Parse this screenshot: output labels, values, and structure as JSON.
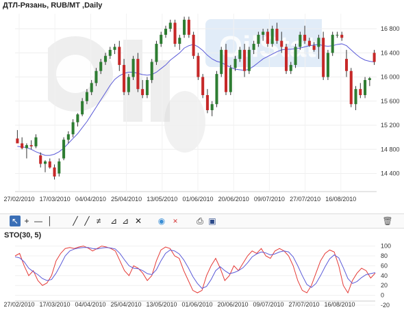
{
  "header": {
    "title": "ДТЛ-Рязань,  RUB/MT ,Daily"
  },
  "watermark": {
    "text": "OilStat"
  },
  "toolbar": {
    "items": [
      {
        "icon": "cursor-icon",
        "active": true
      },
      {
        "icon": "crosshair-icon"
      },
      {
        "icon": "horizontal-line-icon"
      },
      {
        "icon": "vertical-line-icon"
      },
      {
        "icon": "trend-line-icon"
      },
      {
        "icon": "ray-icon"
      },
      {
        "icon": "channel-icon"
      },
      {
        "icon": "fibonacci-icon"
      },
      {
        "icon": "fan-icon"
      },
      {
        "icon": "gann-icon"
      },
      {
        "icon": "comment-icon"
      },
      {
        "icon": "delete-cross-icon"
      },
      {
        "icon": "print-icon"
      },
      {
        "icon": "save-icon"
      },
      {
        "icon": "trash-icon"
      }
    ]
  },
  "chart_data": [
    {
      "type": "candlestick",
      "title": "ДТЛ-Рязань,  RUB/MT ,Daily",
      "x_tick_labels": [
        "27/02/2010",
        "17/03/2010",
        "04/04/2010",
        "25/04/2010",
        "13/05/2010",
        "01/06/2010",
        "20/06/2010",
        "09/07/2010",
        "27/07/2010",
        "16/08/2010"
      ],
      "y_ticks": [
        14400,
        14800,
        15200,
        15600,
        16000,
        16400,
        16800
      ],
      "ylim": [
        14100,
        17050
      ],
      "up_color": "#2e7d32",
      "down_color": "#c62828",
      "ma_color": "#5a5ad8",
      "candles": [
        [
          14980,
          15120,
          14900,
          14900
        ],
        [
          14900,
          15000,
          14800,
          14820
        ],
        [
          14820,
          14900,
          14650,
          14870
        ],
        [
          14870,
          14950,
          14800,
          14850
        ],
        [
          14850,
          15050,
          14820,
          15000
        ],
        [
          14700,
          14750,
          14500,
          14560
        ],
        [
          14560,
          14620,
          14420,
          14600
        ],
        [
          14600,
          14650,
          14480,
          14500
        ],
        [
          14500,
          14550,
          14300,
          14350
        ],
        [
          14400,
          14650,
          14350,
          14600
        ],
        [
          14650,
          15000,
          14620,
          14960
        ],
        [
          14960,
          15100,
          14900,
          15050
        ],
        [
          15050,
          15300,
          15000,
          15250
        ],
        [
          15250,
          15400,
          15180,
          15380
        ],
        [
          15380,
          15650,
          15350,
          15600
        ],
        [
          15600,
          15800,
          15550,
          15750
        ],
        [
          15750,
          15950,
          15700,
          15900
        ],
        [
          15900,
          16150,
          15850,
          16100
        ],
        [
          16100,
          16300,
          16050,
          16250
        ],
        [
          16250,
          16400,
          16200,
          16350
        ],
        [
          16350,
          16500,
          16300,
          16450
        ],
        [
          16450,
          16550,
          16380,
          16500
        ],
        [
          16500,
          16600,
          16100,
          16200
        ],
        [
          16200,
          16300,
          15700,
          15750
        ],
        [
          15750,
          16050,
          15700,
          16000
        ],
        [
          16000,
          16350,
          15950,
          16300
        ],
        [
          16300,
          16400,
          15750,
          15800
        ],
        [
          15800,
          15950,
          15650,
          15700
        ],
        [
          15700,
          16000,
          15650,
          15950
        ],
        [
          15950,
          16300,
          15900,
          16250
        ],
        [
          16250,
          16600,
          16200,
          16550
        ],
        [
          16550,
          16750,
          16500,
          16700
        ],
        [
          16700,
          16850,
          16650,
          16800
        ],
        [
          16800,
          16950,
          16750,
          16900
        ],
        [
          16900,
          16950,
          16500,
          16550
        ],
        [
          16550,
          16700,
          16450,
          16650
        ],
        [
          16700,
          17000,
          16650,
          16950
        ],
        [
          16950,
          17000,
          16650,
          16700
        ],
        [
          16700,
          16750,
          16300,
          16350
        ],
        [
          16350,
          16400,
          15950,
          16000
        ],
        [
          16000,
          16050,
          15650,
          15700
        ],
        [
          15700,
          15800,
          15400,
          15450
        ],
        [
          15450,
          15600,
          15350,
          15550
        ],
        [
          15550,
          16100,
          15500,
          16050
        ],
        [
          16050,
          16500,
          16000,
          16450
        ],
        [
          16450,
          16550,
          15700,
          15750
        ],
        [
          15750,
          16200,
          15700,
          16150
        ],
        [
          16150,
          16350,
          16100,
          16300
        ],
        [
          16300,
          16500,
          16250,
          16450
        ],
        [
          16450,
          16550,
          16000,
          16100
        ],
        [
          16100,
          16500,
          16050,
          16450
        ],
        [
          16450,
          16600,
          16380,
          16550
        ],
        [
          16550,
          16750,
          16500,
          16700
        ],
        [
          16700,
          16800,
          16600,
          16750
        ],
        [
          16750,
          16800,
          16500,
          16550
        ],
        [
          16550,
          16850,
          16500,
          16800
        ],
        [
          16800,
          16900,
          16550,
          16600
        ],
        [
          16600,
          16750,
          16400,
          16500
        ],
        [
          16500,
          16550,
          16050,
          16100
        ],
        [
          16100,
          16250,
          16050,
          16200
        ],
        [
          16200,
          16550,
          16150,
          16500
        ],
        [
          16500,
          16750,
          16450,
          16700
        ],
        [
          16700,
          16850,
          16550,
          16600
        ],
        [
          16600,
          16650,
          16500,
          16520
        ],
        [
          16520,
          16580,
          16420,
          16450
        ],
        [
          16500,
          16700,
          16300,
          16650
        ],
        [
          16650,
          16750,
          15950,
          16000
        ],
        [
          16000,
          16450,
          15950,
          16400
        ],
        [
          16400,
          16750,
          16350,
          16700
        ],
        [
          16700,
          16750,
          16650,
          16700
        ],
        [
          16700,
          16750,
          16600,
          16650
        ],
        [
          16300,
          16450,
          16000,
          16100
        ],
        [
          16100,
          16150,
          15500,
          15550
        ],
        [
          15550,
          15850,
          15450,
          15800
        ],
        [
          15800,
          15900,
          15650,
          15700
        ],
        [
          15700,
          16000,
          15650,
          15950
        ],
        [
          15950,
          16000,
          15850,
          15980
        ],
        [
          16400,
          16450,
          16200,
          16250
        ]
      ],
      "moving_average": [
        14850,
        14840,
        14830,
        14800,
        14760,
        14730,
        14700,
        14700,
        14720,
        14760,
        14820,
        14900,
        14980,
        15060,
        15160,
        15260,
        15380,
        15500,
        15620,
        15740,
        15860,
        15960,
        16020,
        16060,
        16080,
        16080,
        16060,
        16040,
        16030,
        16040,
        16080,
        16140,
        16200,
        16280,
        16340,
        16400,
        16480,
        16520,
        16540,
        16500,
        16440,
        16360,
        16300,
        16260,
        16240,
        16200,
        16160,
        16130,
        16120,
        16110,
        16130,
        16180,
        16240,
        16300,
        16340,
        16380,
        16420,
        16450,
        16460,
        16460,
        16470,
        16480,
        16500,
        16520,
        16530,
        16540,
        16520,
        16510,
        16520,
        16540,
        16550,
        16520,
        16450,
        16380,
        16320,
        16280,
        16260,
        16250
      ]
    },
    {
      "type": "line",
      "title": "STO(30, 5)",
      "x_tick_labels": [
        "27/02/2010",
        "17/03/2010",
        "04/04/2010",
        "25/04/2010",
        "13/05/2010",
        "01/06/2010",
        "20/06/2010",
        "09/07/2010",
        "27/07/2010",
        "16/08/2010"
      ],
      "y_ticks": [
        -20,
        0,
        20,
        40,
        60,
        80,
        100
      ],
      "ylim": [
        -20,
        105
      ],
      "series": [
        {
          "color": "#e53935",
          "values": [
            80,
            85,
            60,
            40,
            50,
            30,
            20,
            25,
            40,
            70,
            85,
            95,
            97,
            95,
            98,
            100,
            96,
            90,
            95,
            100,
            98,
            95,
            90,
            70,
            50,
            40,
            60,
            55,
            45,
            30,
            40,
            70,
            92,
            98,
            95,
            80,
            75,
            50,
            30,
            10,
            5,
            10,
            40,
            60,
            75,
            55,
            30,
            40,
            60,
            50,
            65,
            80,
            90,
            85,
            95,
            80,
            75,
            90,
            95,
            90,
            80,
            60,
            30,
            10,
            5,
            20,
            45,
            70,
            85,
            92,
            88,
            60,
            20,
            5,
            30,
            45,
            55,
            50,
            35,
            45
          ]
        },
        {
          "color": "#5a5ad8",
          "values": [
            78,
            76,
            68,
            55,
            48,
            42,
            34,
            30,
            32,
            45,
            62,
            80,
            90,
            94,
            96,
            97,
            97,
            95,
            94,
            96,
            97,
            96,
            94,
            85,
            72,
            60,
            55,
            54,
            50,
            44,
            42,
            52,
            70,
            85,
            92,
            90,
            84,
            72,
            56,
            38,
            24,
            14,
            18,
            32,
            50,
            58,
            50,
            44,
            46,
            50,
            56,
            66,
            78,
            84,
            88,
            86,
            82,
            84,
            88,
            90,
            88,
            78,
            60,
            40,
            22,
            16,
            24,
            40,
            58,
            74,
            82,
            76,
            56,
            34,
            24,
            28,
            36,
            42,
            44,
            46
          ]
        }
      ]
    }
  ]
}
